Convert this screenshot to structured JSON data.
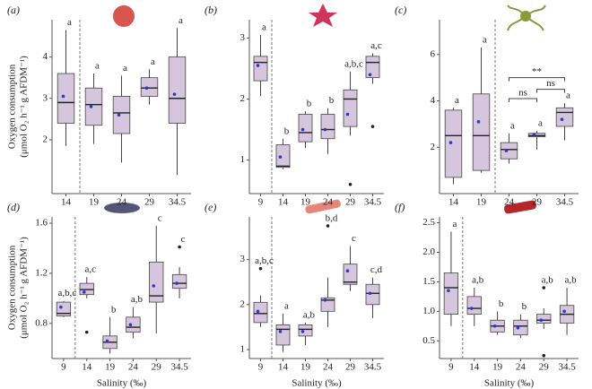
{
  "chart_data": [
    {
      "type": "box",
      "panel": "(a)",
      "ylabel": [
        "Oxygen consumption",
        "(μmol O₂ h⁻¹ g AFDM⁻¹)"
      ],
      "categories": [
        "14",
        "19",
        "24",
        "29",
        "34.5"
      ],
      "divider_after": "14",
      "color": "#d5c6dd",
      "mean_color": "#3535c8",
      "ylim": [
        0.7,
        4.9
      ],
      "yticks": [
        2,
        3,
        4
      ],
      "boxes": [
        {
          "min": 1.85,
          "q1": 2.4,
          "median": 2.9,
          "q3": 3.6,
          "max": 4.65,
          "mean": 3.05,
          "outliers": [],
          "letter": "a"
        },
        {
          "min": 1.9,
          "q1": 2.35,
          "median": 2.85,
          "q3": 3.25,
          "max": 3.6,
          "mean": 2.8,
          "outliers": [],
          "letter": "a"
        },
        {
          "min": 1.45,
          "q1": 2.15,
          "median": 2.65,
          "q3": 3.05,
          "max": 3.55,
          "mean": 2.6,
          "outliers": [],
          "letter": "a"
        },
        {
          "min": 2.85,
          "q1": 3.05,
          "median": 3.25,
          "q3": 3.5,
          "max": 3.7,
          "mean": 3.25,
          "outliers": [],
          "letter": "a"
        },
        {
          "min": 1.15,
          "q1": 2.4,
          "median": 3.0,
          "q3": 4.0,
          "max": 4.7,
          "mean": 3.1,
          "outliers": [],
          "letter": "a"
        }
      ]
    },
    {
      "type": "box",
      "panel": "(b)",
      "categories": [
        "9",
        "14",
        "19",
        "24",
        "29",
        "34.5"
      ],
      "divider_after": "9",
      "color": "#d5c6dd",
      "mean_color": "#3535c8",
      "ylim": [
        0.45,
        3.3
      ],
      "yticks": [
        1,
        2,
        3
      ],
      "boxes": [
        {
          "min": 2.05,
          "q1": 2.3,
          "median": 2.6,
          "q3": 2.7,
          "max": 3.05,
          "mean": 2.55,
          "outliers": [],
          "letter": "a"
        },
        {
          "min": 0.85,
          "q1": 0.88,
          "median": 0.9,
          "q3": 1.25,
          "max": 1.35,
          "mean": 1.05,
          "outliers": [],
          "letter": "b"
        },
        {
          "min": 1.2,
          "q1": 1.3,
          "median": 1.45,
          "q3": 1.75,
          "max": 1.8,
          "mean": 1.5,
          "outliers": [],
          "letter": "b"
        },
        {
          "min": 1.1,
          "q1": 1.35,
          "median": 1.5,
          "q3": 1.75,
          "max": 1.85,
          "mean": 1.5,
          "outliers": [],
          "letter": "b"
        },
        {
          "min": 1.4,
          "q1": 1.55,
          "median": 2.0,
          "q3": 2.15,
          "max": 2.45,
          "mean": 1.75,
          "outliers": [
            0.6
          ],
          "letter": "a,b,c"
        },
        {
          "min": 2.25,
          "q1": 2.35,
          "median": 2.6,
          "q3": 2.7,
          "max": 2.75,
          "mean": 2.4,
          "outliers": [
            1.55
          ],
          "letter": "a,c"
        }
      ]
    },
    {
      "type": "box",
      "panel": "(c)",
      "categories": [
        "14",
        "19",
        "24",
        "29",
        "34.5"
      ],
      "divider_after": "19",
      "color": "#d5c6dd",
      "mean_color": "#3535c8",
      "ylim": [
        0,
        7.5
      ],
      "yticks": [
        2,
        4,
        6
      ],
      "boxes": [
        {
          "min": 0.4,
          "q1": 0.7,
          "median": 2.5,
          "q3": 3.6,
          "max": 3.7,
          "mean": 2.2,
          "outliers": [],
          "letter": "a"
        },
        {
          "min": 0.9,
          "q1": 1.0,
          "median": 2.5,
          "q3": 4.3,
          "max": 6.3,
          "mean": 3.1,
          "outliers": [],
          "letter": "a"
        },
        {
          "min": 1.3,
          "q1": 1.5,
          "median": 1.9,
          "q3": 2.2,
          "max": 2.6,
          "mean": 1.85,
          "outliers": [],
          "letter": "a"
        },
        {
          "min": 1.9,
          "q1": 2.45,
          "median": 2.5,
          "q3": 2.6,
          "max": 2.7,
          "mean": 2.55,
          "outliers": [],
          "letter": "a"
        },
        {
          "min": 2.3,
          "q1": 2.9,
          "median": 3.5,
          "q3": 3.7,
          "max": 3.9,
          "mean": 3.2,
          "outliers": [],
          "letter": "a"
        }
      ],
      "brackets": [
        {
          "text": "**",
          "from": "24",
          "to": "34.5",
          "y": 5.0
        },
        {
          "text": "ns",
          "from": "24",
          "to": "29",
          "y": 4.1
        },
        {
          "text": "ns",
          "from": "29",
          "to": "34.5",
          "y": 4.5
        }
      ]
    },
    {
      "type": "box",
      "panel": "(d)",
      "ylabel": [
        "Oxygen consumption",
        "(μmol O₂ h⁻¹ g AFDM⁻¹)"
      ],
      "xlabel": "Salinity (‰)",
      "categories": [
        "9",
        "14",
        "19",
        "24",
        "29",
        "34.5"
      ],
      "divider_after": "9",
      "color": "#d5c6dd",
      "mean_color": "#3535c8",
      "ylim": [
        0.52,
        1.65
      ],
      "yticks": [
        0.8,
        1.2,
        1.6
      ],
      "boxes": [
        {
          "min": 0.85,
          "q1": 0.86,
          "median": 0.88,
          "q3": 0.97,
          "max": 0.98,
          "mean": 0.93,
          "outliers": [],
          "letter": "a,b,c"
        },
        {
          "min": 1.0,
          "q1": 1.03,
          "median": 1.07,
          "q3": 1.12,
          "max": 1.17,
          "mean": 1.05,
          "outliers": [
            0.73
          ],
          "letter": "a,c"
        },
        {
          "min": 0.56,
          "q1": 0.6,
          "median": 0.65,
          "q3": 0.7,
          "max": 0.85,
          "mean": 0.66,
          "outliers": [],
          "letter": "b"
        },
        {
          "min": 0.68,
          "q1": 0.73,
          "median": 0.77,
          "q3": 0.85,
          "max": 0.93,
          "mean": 0.79,
          "outliers": [],
          "letter": "a,b"
        },
        {
          "min": 0.72,
          "q1": 0.97,
          "median": 1.02,
          "q3": 1.29,
          "max": 1.58,
          "mean": 1.1,
          "outliers": [],
          "letter": "c"
        },
        {
          "min": 1.0,
          "q1": 1.08,
          "median": 1.12,
          "q3": 1.19,
          "max": 1.25,
          "mean": 1.12,
          "outliers": [
            1.41
          ],
          "letter": "c"
        }
      ]
    },
    {
      "type": "box",
      "panel": "(e)",
      "xlabel": "Salinity (‰)",
      "categories": [
        "9",
        "14",
        "19",
        "24",
        "29",
        "34.5"
      ],
      "divider_after": "9",
      "color": "#d5c6dd",
      "mean_color": "#3535c8",
      "ylim": [
        0.8,
        3.95
      ],
      "yticks": [
        1,
        2,
        3
      ],
      "boxes": [
        {
          "min": 1.5,
          "q1": 1.6,
          "median": 1.8,
          "q3": 2.05,
          "max": 2.2,
          "mean": 1.85,
          "outliers": [
            2.8
          ],
          "letter": "a,b,c"
        },
        {
          "min": 0.95,
          "q1": 1.1,
          "median": 1.45,
          "q3": 1.55,
          "max": 1.8,
          "mean": 1.4,
          "outliers": [],
          "letter": "a"
        },
        {
          "min": 1.1,
          "q1": 1.3,
          "median": 1.45,
          "q3": 1.55,
          "max": 1.6,
          "mean": 1.4,
          "outliers": [],
          "letter": "a,b"
        },
        {
          "min": 1.5,
          "q1": 1.85,
          "median": 2.1,
          "q3": 2.15,
          "max": 2.6,
          "mean": 2.1,
          "outliers": [
            3.75
          ],
          "letter": "b,d"
        },
        {
          "min": 2.3,
          "q1": 2.45,
          "median": 2.5,
          "q3": 2.9,
          "max": 3.3,
          "mean": 2.75,
          "outliers": [],
          "letter": "c"
        },
        {
          "min": 1.7,
          "q1": 2.0,
          "median": 2.25,
          "q3": 2.45,
          "max": 2.6,
          "mean": 2.25,
          "outliers": [],
          "letter": "c,d"
        }
      ]
    },
    {
      "type": "box",
      "panel": "(f)",
      "xlabel": "Salinity (‰)",
      "categories": [
        "9",
        "14",
        "19",
        "24",
        "29",
        "34.5"
      ],
      "divider_after": "9",
      "color": "#d5c6dd",
      "mean_color": "#3535c8",
      "ylim": [
        0.2,
        2.6
      ],
      "yticks": [
        0.5,
        {
          "value": 1,
          "label": "1.0"
        },
        1.5,
        {
          "value": 2,
          "label": "2.0"
        },
        2.5
      ],
      "boxes": [
        {
          "min": 0.75,
          "q1": 0.95,
          "median": 1.4,
          "q3": 1.65,
          "max": 2.35,
          "mean": 1.35,
          "outliers": [],
          "letter": "a"
        },
        {
          "min": 0.75,
          "q1": 0.95,
          "median": 1.05,
          "q3": 1.25,
          "max": 1.4,
          "mean": 1.05,
          "outliers": [],
          "letter": "a,b"
        },
        {
          "min": 0.6,
          "q1": 0.65,
          "median": 0.75,
          "q3": 0.85,
          "max": 1.0,
          "mean": 0.75,
          "outliers": [],
          "letter": "b"
        },
        {
          "min": 0.55,
          "q1": 0.6,
          "median": 0.75,
          "q3": 0.85,
          "max": 0.95,
          "mean": 0.72,
          "outliers": [],
          "letter": "b"
        },
        {
          "min": 0.7,
          "q1": 0.8,
          "median": 0.85,
          "q3": 0.95,
          "max": 1.05,
          "mean": 0.85,
          "outliers": [
            1.4,
            0.25
          ],
          "letter": "a,b"
        },
        {
          "min": 0.6,
          "q1": 0.8,
          "median": 0.95,
          "q3": 1.1,
          "max": 1.4,
          "mean": 1.0,
          "outliers": [],
          "letter": "a,b"
        }
      ]
    }
  ]
}
